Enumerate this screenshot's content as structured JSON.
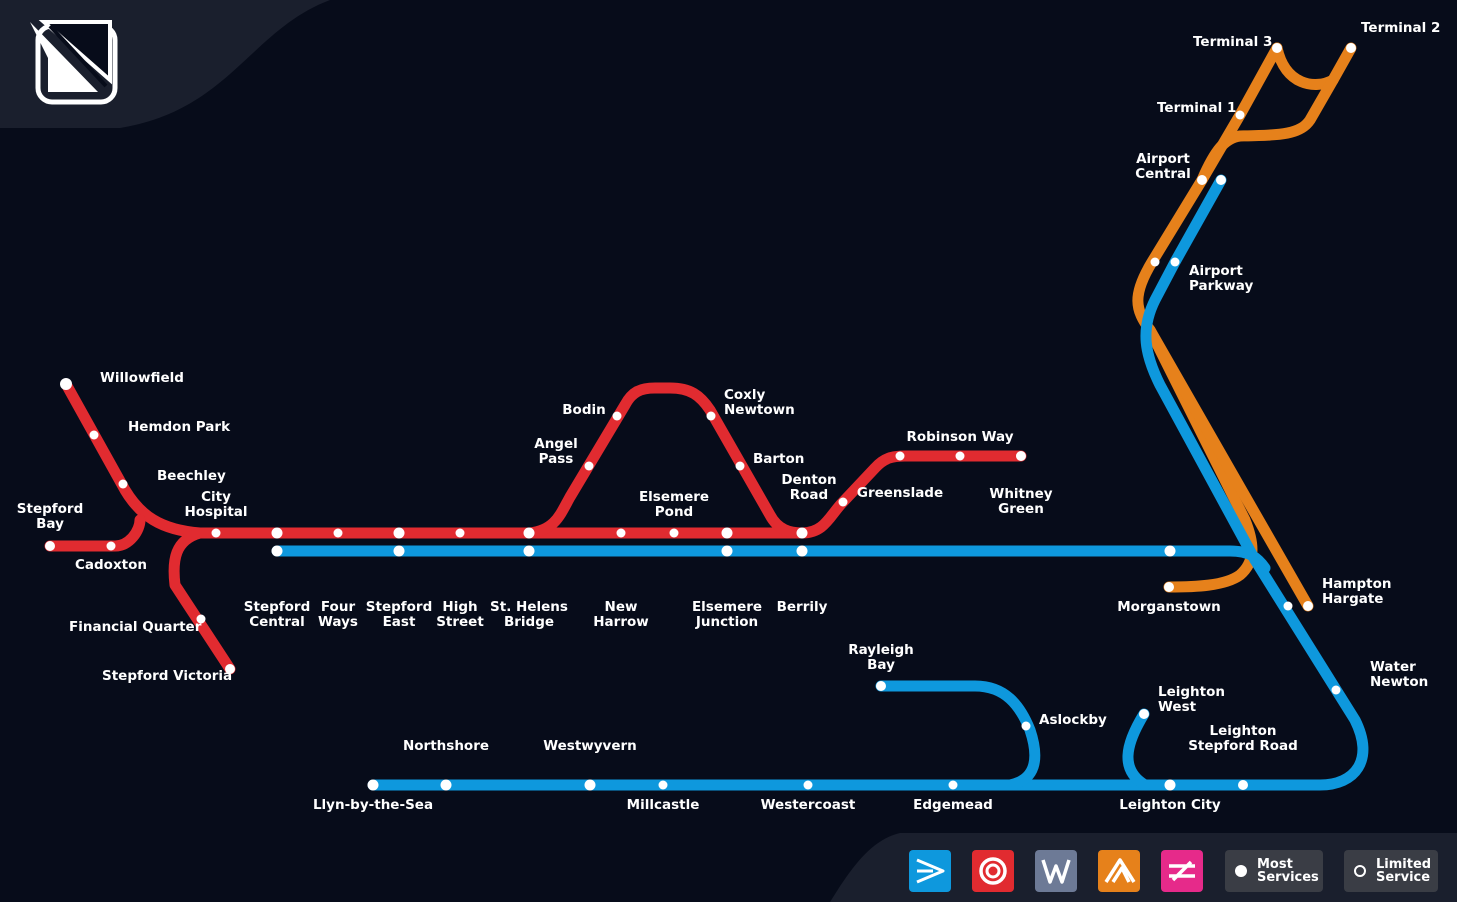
{
  "colors": {
    "background": "#070c1a",
    "red_line": "#e12b30",
    "blue_line": "#0e98dd",
    "orange_line": "#e6811b",
    "station": "#ffffff"
  },
  "logo": {
    "icon": "stepford-connect-logo-icon"
  },
  "stations": {
    "willowfield": "Willowfield",
    "hemdon_park": "Hemdon Park",
    "beechley": "Beechley",
    "city_hospital": "City\nHospital",
    "stepford_bay": "Stepford\nBay",
    "cadoxton": "Cadoxton",
    "financial_quarter": "Financial Quarter",
    "stepford_victoria": "Stepford Victoria",
    "stepford_central": "Stepford\nCentral",
    "four_ways": "Four\nWays",
    "stepford_east": "Stepford\nEast",
    "high_street": "High\nStreet",
    "st_helens_bridge": "St. Helens\nBridge",
    "angel_pass": "Angel\nPass",
    "bodin": "Bodin",
    "coxly_newtown": "Coxly\nNewtown",
    "barton": "Barton",
    "elsemere_pond": "Elsemere\nPond",
    "new_harrow": "New\nHarrow",
    "elsemere_junction": "Elsemere\nJunction",
    "berrily": "Berrily",
    "denton_road": "Denton\nRoad",
    "greenslade": "Greenslade",
    "robinson_way": "Robinson Way",
    "whitney_green": "Whitney\nGreen",
    "morganstown": "Morganstown",
    "hampton_hargate": "Hampton\nHargate",
    "water_newton": "Water\nNewton",
    "terminal_3": "Terminal 3",
    "terminal_2": "Terminal 2",
    "terminal_1": "Terminal 1",
    "airport_central": "Airport\nCentral",
    "airport_parkway": "Airport\nParkway",
    "rayleigh_bay": "Rayleigh\nBay",
    "aslockby": "Aslockby",
    "leighton_west": "Leighton\nWest",
    "leighton_stepford_road": "Leighton\nStepford Road",
    "leighton_city": "Leighton City",
    "northshore": "Northshore",
    "westwyvern": "Westwyvern",
    "llyn_by_the_sea": "Llyn-by-the-Sea",
    "millcastle": "Millcastle",
    "westercoast": "Westercoast",
    "edgemead": "Edgemead"
  },
  "legend": {
    "operators": [
      {
        "icon": "connect-operator-icon",
        "color": "#0e98dd"
      },
      {
        "icon": "metro-operator-icon",
        "color": "#e12b30"
      },
      {
        "icon": "waterline-operator-icon",
        "color": "#6d7a96"
      },
      {
        "icon": "airlink-operator-icon",
        "color": "#e6811b"
      },
      {
        "icon": "express-operator-icon",
        "color": "#e62a8a"
      }
    ],
    "most_services": "Most\nServices",
    "limited_service": "Limited\nService"
  }
}
